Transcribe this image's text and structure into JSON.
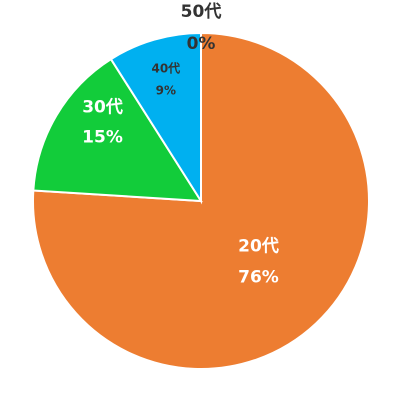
{
  "chart_data": {
    "type": "pie",
    "categories": [
      "20代",
      "30代",
      "40代",
      "50代"
    ],
    "values": [
      76,
      15,
      9,
      0
    ],
    "value_labels": [
      "76%",
      "15%",
      "9%",
      "0%"
    ],
    "colors": [
      "#ed7d31",
      "#12cc3a",
      "#00b0f0",
      "#7030a0"
    ]
  }
}
